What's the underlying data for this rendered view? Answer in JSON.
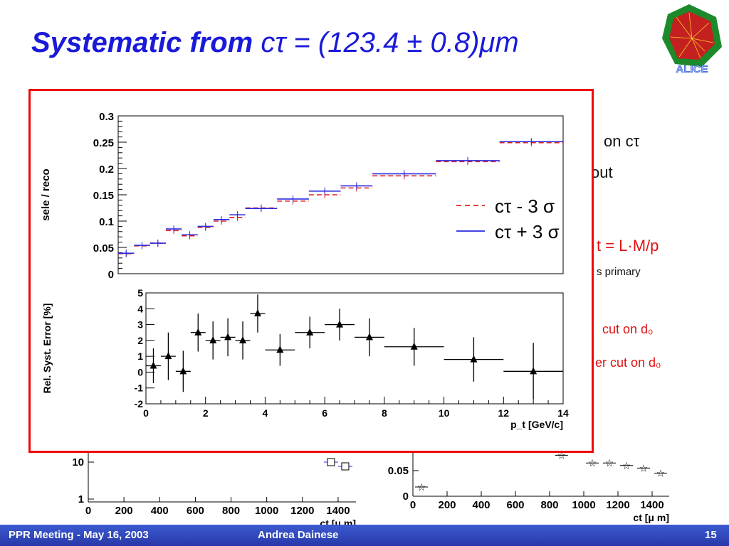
{
  "slide": {
    "title_bold": "Systematic from",
    "title_rest": "cτ = (123.4 ± 0.8)μm",
    "logo_text": "ALICE"
  },
  "background_text": {
    "line1": "on cτ",
    "line2": "out",
    "line3": "t = L·M/p",
    "line4": "s primary",
    "line5": "cut on d₀",
    "line6": "er cut on d₀"
  },
  "footer": {
    "meeting": "PPR Meeting - May 16, 2003",
    "author": "Andrea Dainese",
    "page": "15"
  },
  "chart_data": [
    {
      "type": "line",
      "ylabel": "sele / reco",
      "ylim": [
        0,
        0.3
      ],
      "yticks": [
        "0",
        "0.05",
        "0.1",
        "0.15",
        "0.2",
        "0.25",
        "0.3"
      ],
      "xlim": [
        0,
        14
      ],
      "bins": [
        [
          0,
          0.5
        ],
        [
          0.5,
          1
        ],
        [
          1,
          1.5
        ],
        [
          1.5,
          2
        ],
        [
          2,
          2.5
        ],
        [
          2.5,
          3
        ],
        [
          3,
          3.5
        ],
        [
          3.5,
          4
        ],
        [
          4,
          5
        ],
        [
          5,
          6
        ],
        [
          6,
          7
        ],
        [
          7,
          8
        ],
        [
          8,
          10
        ],
        [
          10,
          12
        ],
        [
          12,
          14
        ]
      ],
      "series": [
        {
          "name": "cτ - 3 σ",
          "style": "dashed",
          "color": "#e02020",
          "values": [
            0.038,
            0.053,
            0.058,
            0.082,
            0.072,
            0.088,
            0.1,
            0.107,
            0.125,
            0.138,
            0.15,
            0.163,
            0.186,
            0.213,
            0.249
          ]
        },
        {
          "name": "cτ + 3 σ",
          "style": "solid",
          "color": "#2a2ae0",
          "values": [
            0.039,
            0.054,
            0.058,
            0.085,
            0.074,
            0.09,
            0.103,
            0.112,
            0.124,
            0.142,
            0.157,
            0.167,
            0.19,
            0.215,
            0.251
          ]
        }
      ],
      "legend": "right",
      "legend_entries": [
        "cτ - 3 σ",
        "cτ + 3 σ"
      ]
    },
    {
      "type": "scatter",
      "ylabel": "Rel. Syst. Error [%]",
      "xlabel": "p_t [GeV/c]",
      "ylim": [
        -2,
        5
      ],
      "yticks": [
        "-2",
        "-1",
        "0",
        "1",
        "2",
        "3",
        "4",
        "5"
      ],
      "xlim": [
        0,
        14
      ],
      "xticks": [
        "0",
        "2",
        "4",
        "6",
        "8",
        "10",
        "12",
        "14"
      ],
      "points": [
        {
          "x": 0.25,
          "xerr": 0.25,
          "y": 0.4,
          "yerr": 1.1
        },
        {
          "x": 0.75,
          "xerr": 0.25,
          "y": 1.0,
          "yerr": 1.5
        },
        {
          "x": 1.25,
          "xerr": 0.25,
          "y": 0.05,
          "yerr": 1.3
        },
        {
          "x": 1.75,
          "xerr": 0.25,
          "y": 2.5,
          "yerr": 1.2
        },
        {
          "x": 2.25,
          "xerr": 0.25,
          "y": 2.0,
          "yerr": 1.2
        },
        {
          "x": 2.75,
          "xerr": 0.25,
          "y": 2.2,
          "yerr": 1.2
        },
        {
          "x": 3.25,
          "xerr": 0.25,
          "y": 2.0,
          "yerr": 1.2
        },
        {
          "x": 3.75,
          "xerr": 0.25,
          "y": 3.7,
          "yerr": 1.2
        },
        {
          "x": 4.5,
          "xerr": 0.5,
          "y": 1.4,
          "yerr": 1.0
        },
        {
          "x": 5.5,
          "xerr": 0.5,
          "y": 2.5,
          "yerr": 1.0
        },
        {
          "x": 6.5,
          "xerr": 0.5,
          "y": 3.0,
          "yerr": 1.0
        },
        {
          "x": 7.5,
          "xerr": 0.5,
          "y": 2.2,
          "yerr": 1.2
        },
        {
          "x": 9.0,
          "xerr": 1.0,
          "y": 1.6,
          "yerr": 1.2
        },
        {
          "x": 11.0,
          "xerr": 1.0,
          "y": 0.8,
          "yerr": 1.4
        },
        {
          "x": 13.0,
          "xerr": 1.0,
          "y": 0.05,
          "yerr": 1.8
        }
      ]
    },
    {
      "type": "scatter",
      "partially_hidden": true,
      "xlabel": "ct [μ m]",
      "ytick_labels": [
        "1",
        "10"
      ],
      "xticks": [
        "0",
        "200",
        "400",
        "600",
        "800",
        "1000",
        "1200",
        "1400"
      ],
      "xlim": [
        0,
        1500
      ],
      "points": [
        {
          "x": 1360,
          "y": 12
        },
        {
          "x": 1440,
          "y": 10
        }
      ]
    },
    {
      "type": "scatter",
      "partially_hidden": true,
      "xlabel": "ct [μ m]",
      "ytick_labels": [
        "0",
        "0.05"
      ],
      "xticks": [
        "0",
        "200",
        "400",
        "600",
        "800",
        "1000",
        "1200",
        "1400"
      ],
      "xlim": [
        0,
        1500
      ],
      "ylim": [
        0,
        0.1
      ],
      "points": [
        {
          "x": 50,
          "y": 0.018
        },
        {
          "x": 870,
          "y": 0.08
        },
        {
          "x": 1050,
          "y": 0.065
        },
        {
          "x": 1150,
          "y": 0.065
        },
        {
          "x": 1250,
          "y": 0.06
        },
        {
          "x": 1350,
          "y": 0.055
        },
        {
          "x": 1450,
          "y": 0.045
        }
      ]
    }
  ]
}
